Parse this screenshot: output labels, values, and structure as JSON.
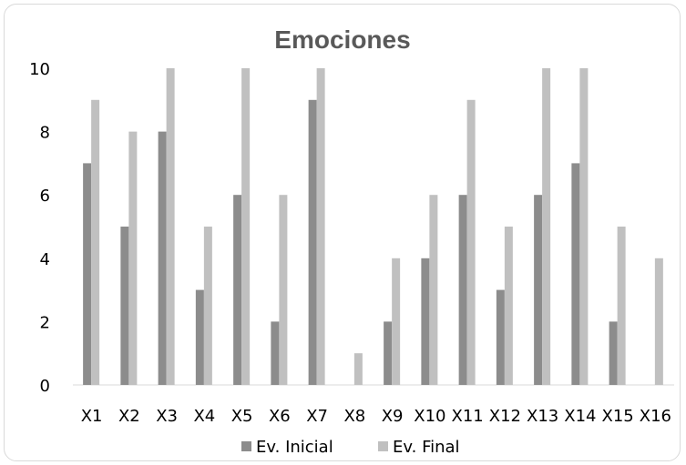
{
  "chart_data": {
    "type": "bar",
    "title": "Emociones",
    "xlabel": "",
    "ylabel": "",
    "categories": [
      "X1",
      "X2",
      "X3",
      "X4",
      "X5",
      "X6",
      "X7",
      "X8",
      "X9",
      "X10",
      "X11",
      "X12",
      "X13",
      "X14",
      "X15",
      "X16"
    ],
    "series": [
      {
        "name": "Ev. Inicial",
        "color": "#8c8c8c",
        "values": [
          7,
          5,
          8,
          3,
          6,
          2,
          9,
          0,
          2,
          4,
          6,
          3,
          6,
          7,
          2,
          0
        ]
      },
      {
        "name": "Ev. Final",
        "color": "#c0c0c0",
        "values": [
          9,
          8,
          10,
          5,
          10,
          6,
          10,
          1,
          4,
          6,
          9,
          5,
          10,
          10,
          5,
          4
        ]
      }
    ],
    "ylim": [
      0,
      10
    ],
    "yticks": [
      0,
      2,
      4,
      6,
      8,
      10
    ],
    "grid": false,
    "legend": "bottom"
  }
}
